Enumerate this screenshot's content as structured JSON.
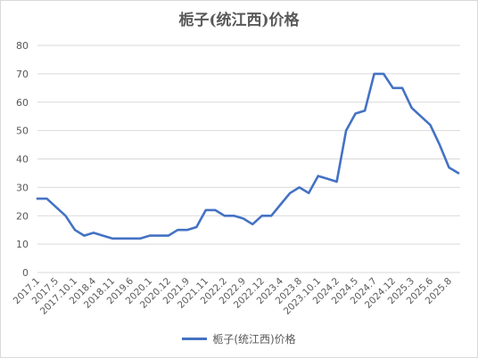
{
  "chart_data": {
    "type": "line",
    "title": "栀子(统江西)价格",
    "xlabel": "",
    "ylabel": "",
    "ylim": [
      0,
      80
    ],
    "yticks": [
      0,
      10,
      20,
      30,
      40,
      50,
      60,
      70,
      80
    ],
    "grid": true,
    "legend_position": "bottom",
    "x_tick_labels": [
      "2017.1",
      "2017.5",
      "2017.10.1",
      "2018.4",
      "2018.11",
      "2019.6",
      "2020.1",
      "2020.12",
      "2021.9",
      "2021.11",
      "2022.2",
      "2022.9",
      "2022.12",
      "2023.4",
      "2023.8",
      "2023.10.1",
      "2024.2",
      "2024.5",
      "2024.7",
      "2024.12",
      "2025.3",
      "2025.6",
      "2025.8"
    ],
    "series": [
      {
        "name": "栀子(统江西)价格",
        "color": "#4472c4",
        "values": [
          26,
          26,
          23,
          20,
          15,
          13,
          14,
          13,
          12,
          12,
          12,
          12,
          13,
          13,
          13,
          15,
          15,
          16,
          22,
          22,
          20,
          20,
          19,
          17,
          20,
          20,
          24,
          28,
          30,
          28,
          34,
          33,
          32,
          50,
          56,
          57,
          70,
          70,
          65,
          65,
          58,
          55,
          52,
          45,
          37,
          35
        ]
      }
    ]
  }
}
